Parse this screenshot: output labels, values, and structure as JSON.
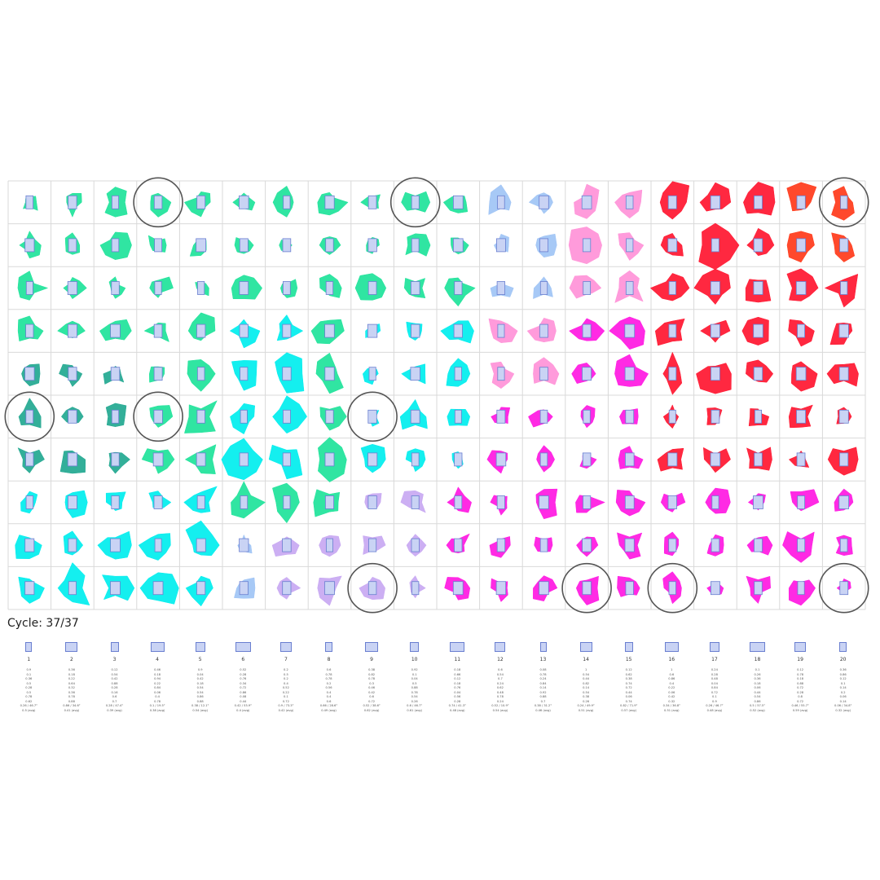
{
  "cycle": {
    "label": "Cycle: 37/37"
  },
  "grid": {
    "rows": 10,
    "cols": 20
  },
  "colors": {
    "green": "#1ee39a",
    "teal": "#22a890",
    "cyan": "#00eeee",
    "light_blue": "#9fc4f5",
    "lavender": "#c8a8f2",
    "magenta": "#ff18e2",
    "pink": "#ff92d8",
    "red": "#ff1630",
    "orange_red": "#ff3a1a",
    "glyph_fill": "#c9d3f4",
    "glyph_stroke": "#6a7fd0",
    "grid_line": "#d9d9d9",
    "highlight_ring": "#555555"
  },
  "highlighted_cells": [
    [
      0,
      3
    ],
    [
      0,
      9
    ],
    [
      0,
      19
    ],
    [
      5,
      0
    ],
    [
      5,
      3
    ],
    [
      5,
      8
    ],
    [
      9,
      8
    ],
    [
      9,
      13
    ],
    [
      9,
      15
    ],
    [
      9,
      19
    ]
  ],
  "legend": [
    {
      "number": "1",
      "values": [
        "0.9",
        "0.1",
        "0.36",
        "0.5",
        "0.28",
        "0.5",
        "0.78",
        "0.62",
        "0.26 / 46.7°",
        "0.5 (avg)"
      ]
    },
    {
      "number": "2",
      "values": [
        "0.36",
        "0.18",
        "0.22",
        "0.64",
        "0.32",
        "0.36",
        "0.78",
        "0.88",
        "0.86 / 34.6°",
        "0.41 (avg)"
      ]
    },
    {
      "number": "3",
      "values": [
        "0.12",
        "0.54",
        "0.42",
        "0.88",
        "0.28",
        "0.16",
        "0.6",
        "0.7",
        "0.28 / 47.4°",
        "0.39 (avg)"
      ]
    },
    {
      "number": "4",
      "values": [
        "0.46",
        "0.18",
        "0.94",
        "0.22",
        "0.84",
        "0.06",
        "0.4",
        "0.78",
        "0.1 / 19.5°",
        "0.38 (avg)"
      ]
    },
    {
      "number": "5",
      "values": [
        "0.9",
        "0.04",
        "0.42",
        "0.18",
        "0.54",
        "0.54",
        "0.86",
        "0.88",
        "0.38 / 12.1°",
        "0.54 (avg)"
      ]
    },
    {
      "number": "6",
      "values": [
        "0.52",
        "0.28",
        "0.76",
        "0.34",
        "0.72",
        "0.86",
        "0.08",
        "0.44",
        "0.42 / 53.9°",
        "0.4 (avg)"
      ]
    },
    {
      "number": "7",
      "values": [
        "0.2",
        "0.5",
        "0.2",
        "0.4",
        "0.52",
        "0.22",
        "0.1",
        "0.72",
        "0.9 / 73.3°",
        "0.42 (avg)"
      ]
    },
    {
      "number": "8",
      "values": [
        "0.6",
        "0.78",
        "0.78",
        "0.2",
        "0.56",
        "0.4",
        "0.4",
        "0.6",
        "0.66 / 28.6°",
        "0.49 (avg)"
      ]
    },
    {
      "number": "9",
      "values": [
        "0.38",
        "0.82",
        "0.78",
        "0.3",
        "0.46",
        "0.42",
        "0.6",
        "0.72",
        "0.52 / 38.6°",
        "0.62 (avg)"
      ]
    },
    {
      "number": "10",
      "values": [
        "0.92",
        "0.1",
        "0.04",
        "0.5",
        "0.88",
        "0.78",
        "0.54",
        "0.26",
        "0.6 / 46.7°",
        "0.61 (avg)"
      ]
    },
    {
      "number": "11",
      "values": [
        "0.18",
        "0.66",
        "0.12",
        "0.18",
        "0.76",
        "0.04",
        "0.56",
        "0.28",
        "0.74 / 41.3°",
        "0.48 (avg)"
      ]
    },
    {
      "number": "12",
      "values": [
        "0.6",
        "0.54",
        "0.7",
        "0.24",
        "0.62",
        "0.48",
        "0.78",
        "0.24",
        "0.52 / 10.9°",
        "0.54 (avg)"
      ]
    },
    {
      "number": "13",
      "values": [
        "0.08",
        "0.78",
        "0.24",
        "0.84",
        "0.14",
        "0.92",
        "0.88",
        "0.7",
        "0.38 / 31.2°",
        "0.46 (avg)"
      ]
    },
    {
      "number": "14",
      "values": [
        "1",
        "0.54",
        "0.44",
        "0.82",
        "0.14",
        "0.54",
        "0.38",
        "0.26",
        "0.24 / 49.9°",
        "0.51 (avg)"
      ]
    },
    {
      "number": "15",
      "values": [
        "0.12",
        "0.62",
        "0.38",
        "0.74",
        "0.72",
        "0.44",
        "0.06",
        "0.74",
        "0.82 / 71.9°",
        "0.57 (avg)"
      ]
    },
    {
      "number": "16",
      "values": [
        "1",
        "0.6",
        "0.86",
        "0.4",
        "0.22",
        "0.06",
        "0.42",
        "0.32",
        "0.34 / 36.8°",
        "0.51 (avg)"
      ]
    },
    {
      "number": "17",
      "values": [
        "0.24",
        "0.28",
        "0.48",
        "0.04",
        "0.84",
        "0.72",
        "0.1",
        "0.9",
        "0.26 / 46.7°",
        "0.48 (avg)"
      ]
    },
    {
      "number": "18",
      "values": [
        "0.1",
        "0.26",
        "0.36",
        "0.18",
        "0.06",
        "0.44",
        "0.54",
        "0.86",
        "0.5 / 57.5°",
        "0.52 (avg)"
      ]
    },
    {
      "number": "19",
      "values": [
        "0.12",
        "0.78",
        "0.18",
        "0.88",
        "0.72",
        "0.28",
        "0.8",
        "0.72",
        "0.46 / 55.7°",
        "0.59 (avg)"
      ]
    },
    {
      "number": "20",
      "values": [
        "0.36",
        "0.86",
        "0.12",
        "0.1",
        "0.14",
        "0.2",
        "0.06",
        "0.14",
        "0.06 / 34.8°",
        "0.32 (avg)"
      ]
    }
  ]
}
